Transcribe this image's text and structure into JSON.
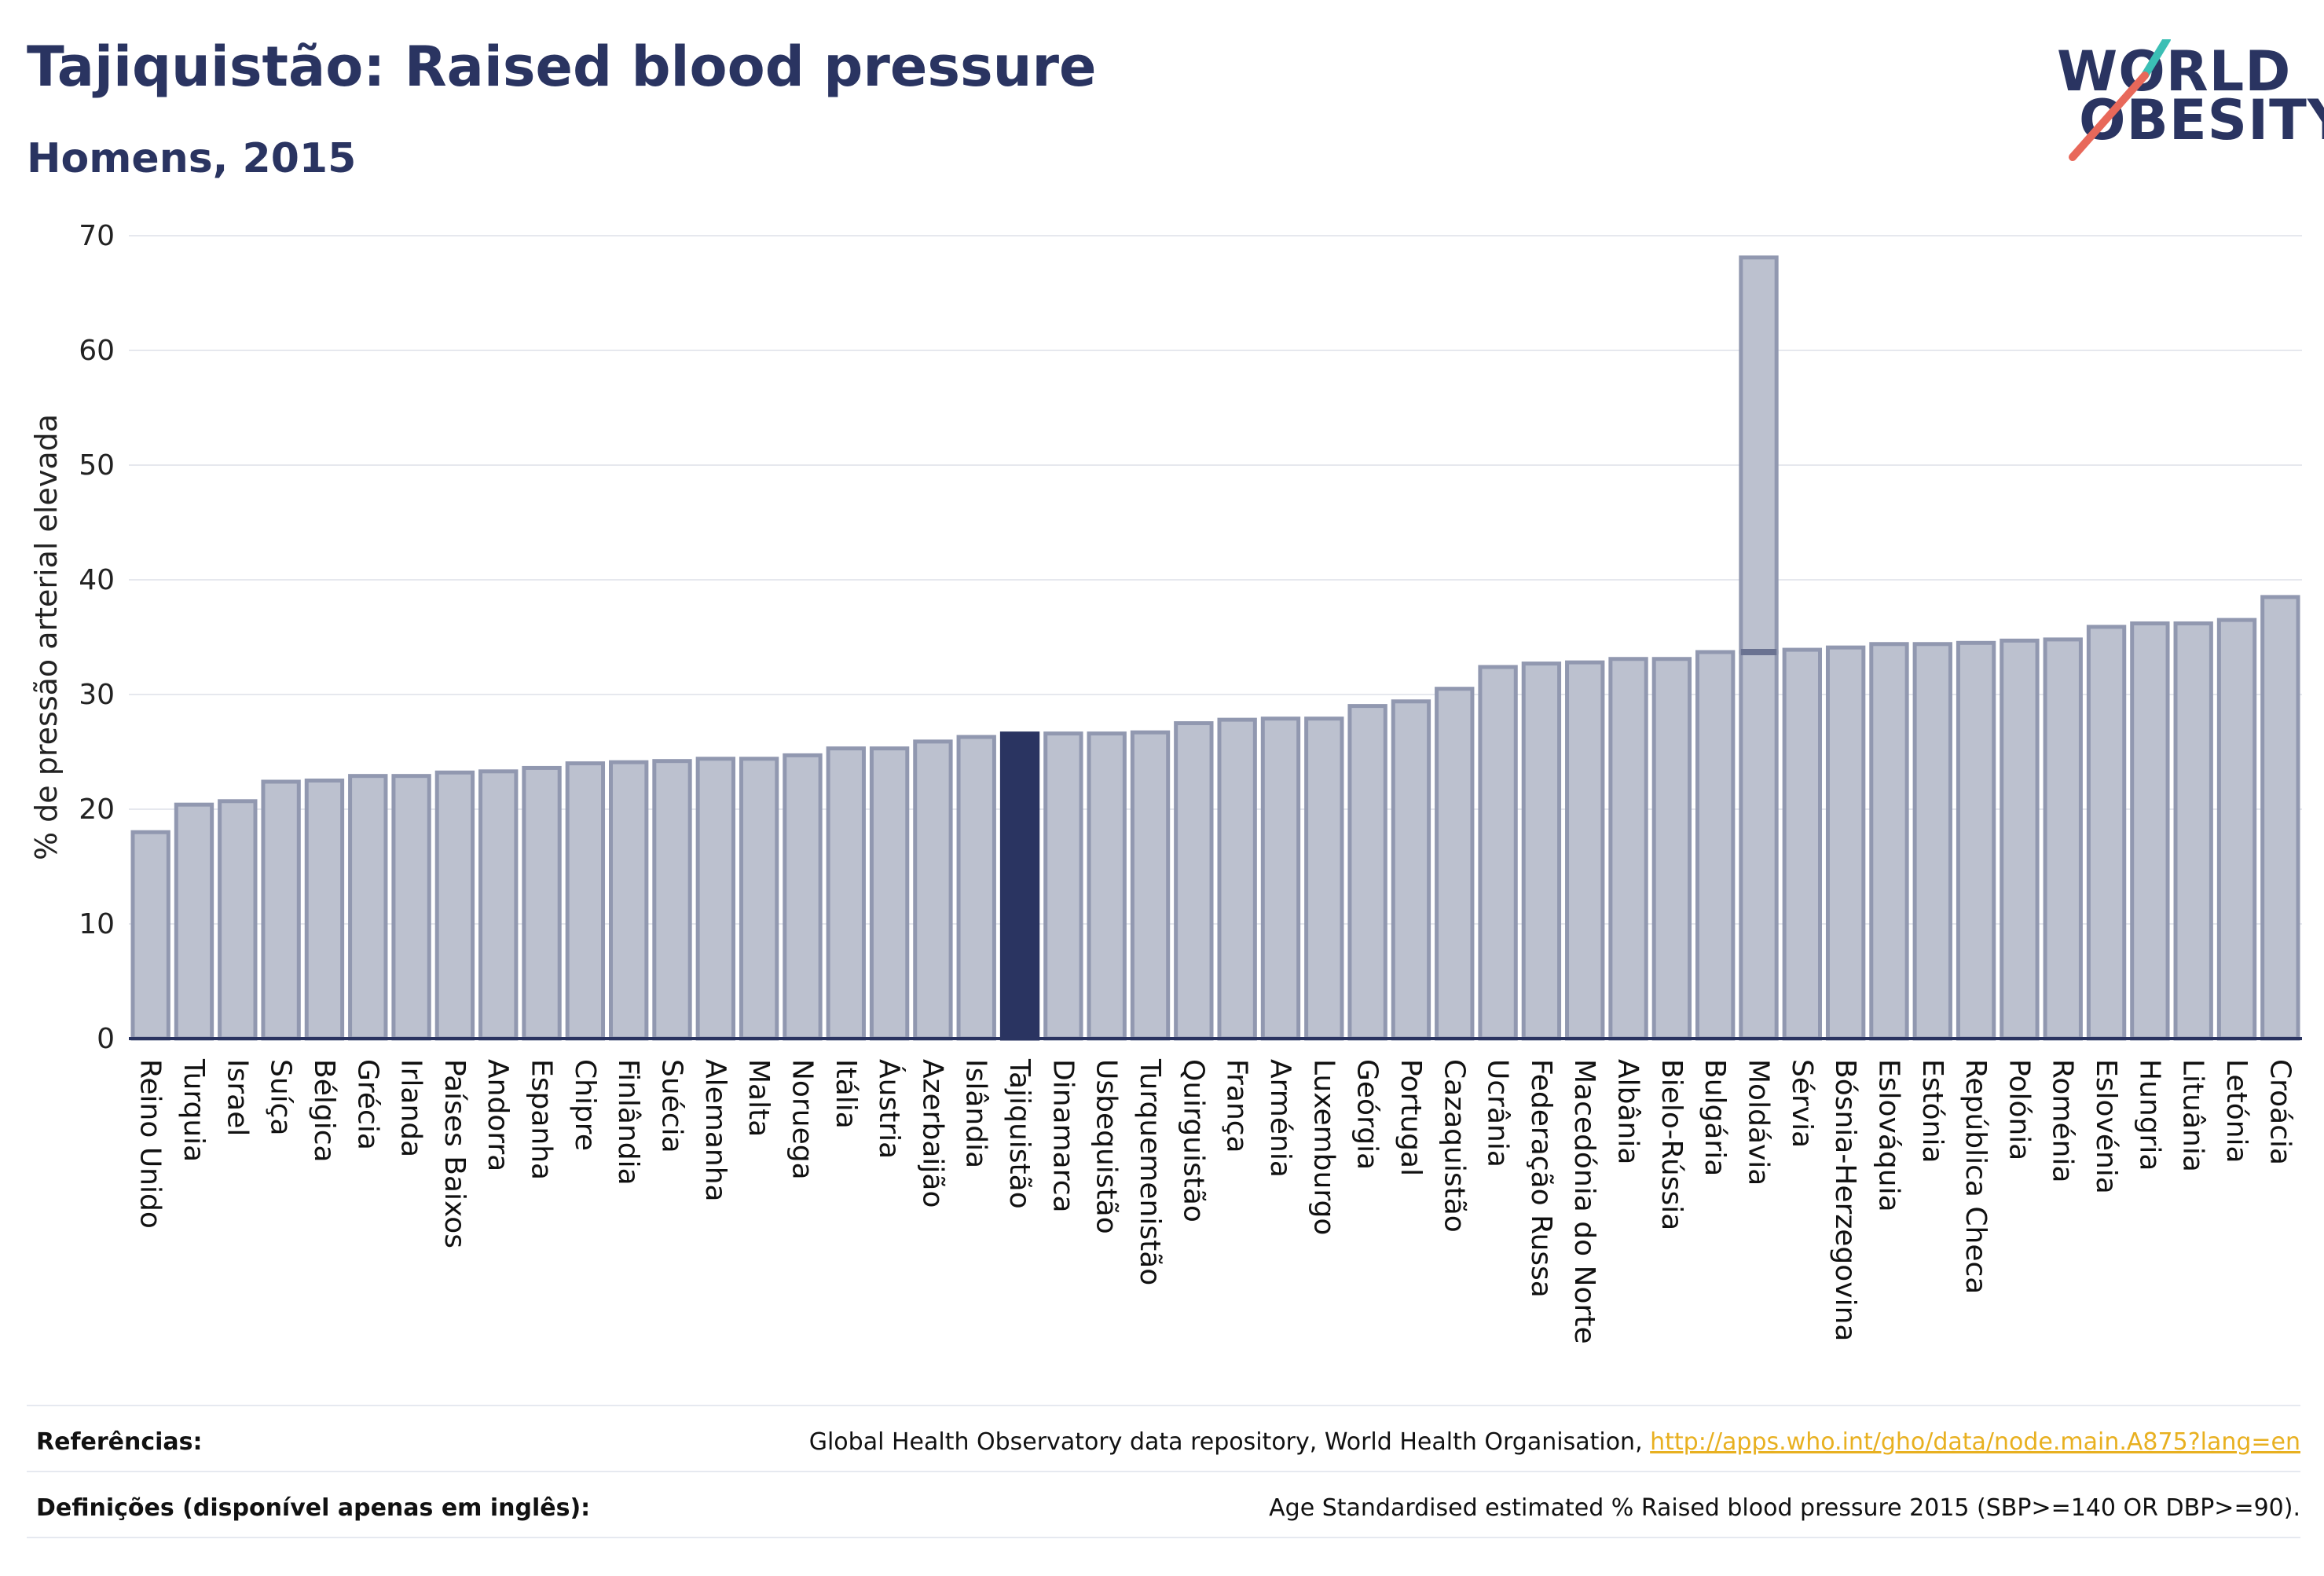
{
  "header": {
    "title": "Tajiquistão: Raised blood pressure",
    "subtitle": "Homens, 2015"
  },
  "logo": {
    "line1": "WORLD",
    "line2": "OBESITY",
    "accent_colors": [
      "#3bbfb5",
      "#e8685a"
    ]
  },
  "colors": {
    "bar": "#bcc1cf",
    "bar_border": "#9198b0",
    "highlight": "#2a3461",
    "grid": "#e6e8ee"
  },
  "chart_data": {
    "type": "bar",
    "ylabel": "% de pressão arterial elevada",
    "xlabel": "",
    "ylim": [
      0,
      70
    ],
    "yticks": [
      0,
      10,
      20,
      30,
      40,
      50,
      60,
      70
    ],
    "highlight_category": "Tajiquistão",
    "categories": [
      "Reino Unido",
      "Turquia",
      "Israel",
      "Suíça",
      "Bélgica",
      "Grécia",
      "Irlanda",
      "Países Baixos",
      "Andorra",
      "Espanha",
      "Chipre",
      "Finlândia",
      "Suécia",
      "Alemanha",
      "Malta",
      "Noruega",
      "Itália",
      "Áustria",
      "Azerbaijão",
      "Islândia",
      "Tajiquistão",
      "Dinamarca",
      "Usbequistão",
      "Turquemenistão",
      "Quirguistão",
      "França",
      "Arménia",
      "Luxemburgo",
      "Geórgia",
      "Portugal",
      "Cazaquistão",
      "Ucrânia",
      "Federação Russa",
      "Macedónia do Norte",
      "Albânia",
      "Bielo-Rússia",
      "Bulgária",
      "Moldávia",
      "Sérvia",
      "Bósnia-Herzegovina",
      "Eslováquia",
      "Estónia",
      "República Checa",
      "Polónia",
      "Roménia",
      "Eslovénia",
      "Hungria",
      "Lituânia",
      "Letónia",
      "Croácia"
    ],
    "values": [
      18.0,
      20.4,
      20.7,
      22.4,
      22.5,
      22.9,
      22.9,
      23.2,
      23.3,
      23.6,
      24.0,
      24.1,
      24.2,
      24.4,
      24.4,
      24.7,
      25.3,
      25.3,
      25.9,
      26.3,
      26.6,
      26.6,
      26.6,
      26.7,
      27.5,
      27.8,
      27.9,
      27.9,
      29.0,
      29.4,
      30.5,
      32.4,
      32.7,
      32.8,
      33.1,
      33.1,
      33.7,
      33.7,
      33.9,
      34.1,
      34.4,
      34.4,
      34.5,
      34.7,
      34.8,
      35.9,
      36.2,
      36.2,
      36.5,
      38.5
    ],
    "extra_marks": [
      {
        "category": "Moldávia",
        "value": 68.1
      }
    ]
  },
  "footer": {
    "references_label": "Referências:",
    "references_text": "Global Health Observatory data repository, World Health Organisation, ",
    "references_link": "http://apps.who.int/gho/data/node.main.A875?lang=en",
    "definitions_label": "Definições (disponível apenas em inglês):",
    "definitions_text": "Age Standardised estimated % Raised blood pressure 2015 (SBP>=140 OR DBP>=90)."
  }
}
